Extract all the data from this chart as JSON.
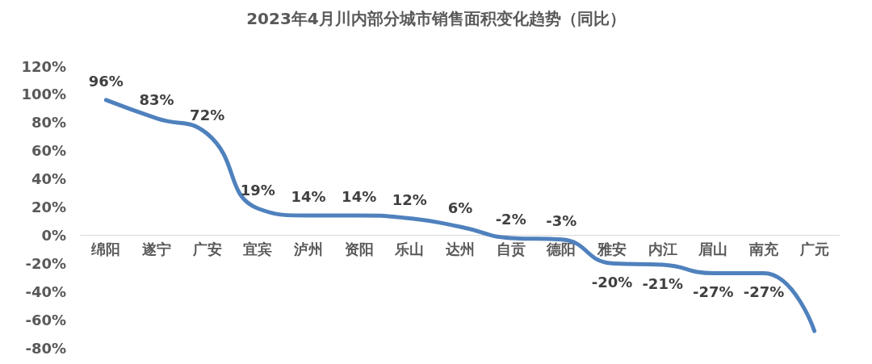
{
  "chart_data": {
    "type": "line",
    "title": "2023年4月川内部分城市销售面积变化趋势（同比）",
    "categories": [
      "绵阳",
      "遂宁",
      "广安",
      "宜宾",
      "泸州",
      "资阳",
      "乐山",
      "达州",
      "自贡",
      "德阳",
      "雅安",
      "内江",
      "眉山",
      "南充",
      "广元"
    ],
    "series": [
      {
        "color": "#4f81bd",
        "values": [
          96,
          83,
          72,
          19,
          14,
          14,
          12,
          6,
          -2,
          -3,
          -20,
          -21,
          -27,
          -27,
          -68
        ],
        "value_labels": [
          "96%",
          "83%",
          "72%",
          "19%",
          "14%",
          "14%",
          "12%",
          "6%",
          "-2%",
          "-3%",
          "-20%",
          "-21%",
          "-27%",
          "-27%",
          null
        ]
      }
    ],
    "ylim": [
      -80,
      120
    ],
    "yticks": [
      {
        "value": -80,
        "label": "-80%"
      },
      {
        "value": -60,
        "label": "-60%"
      },
      {
        "value": -40,
        "label": "-40%"
      },
      {
        "value": -20,
        "label": "-20%"
      },
      {
        "value": 0,
        "label": "0%"
      },
      {
        "value": 20,
        "label": "20%"
      },
      {
        "value": 40,
        "label": "40%"
      },
      {
        "value": 60,
        "label": "60%"
      },
      {
        "value": 80,
        "label": "80%"
      },
      {
        "value": 100,
        "label": "100%"
      },
      {
        "value": 120,
        "label": "120%"
      }
    ],
    "marker": "none",
    "line_style": "solid"
  }
}
